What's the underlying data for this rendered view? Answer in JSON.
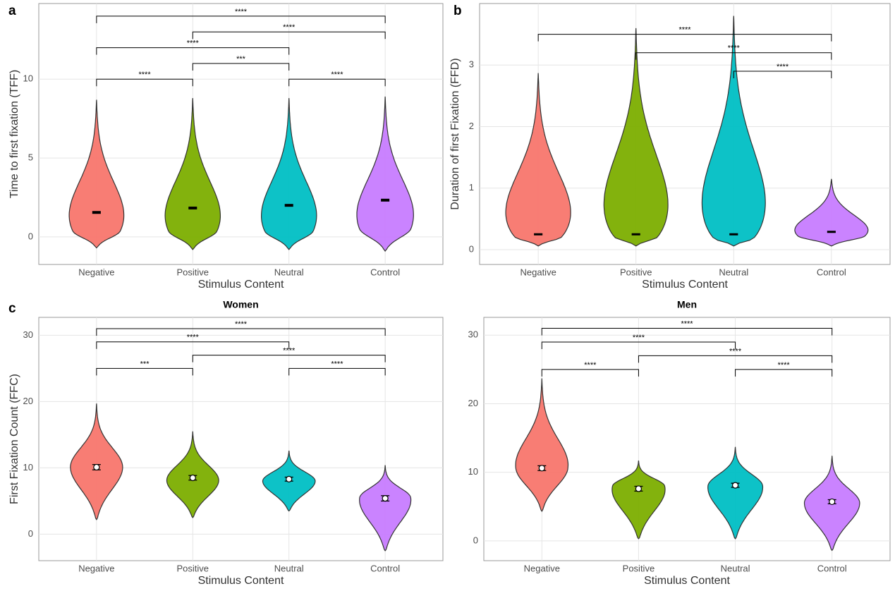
{
  "chart_data": [
    {
      "type": "violin",
      "panel_label": "a",
      "x_label": "Stimulus Content",
      "y_label": "Time to first fixation (TFF)",
      "categories": [
        "Negative",
        "Positive",
        "Neutral",
        "Control"
      ],
      "colors": [
        "#F8766D",
        "#7CAE00",
        "#00BFC4",
        "#C77CFF"
      ],
      "means": [
        1.55,
        1.83,
        2.0,
        2.33
      ],
      "errors": [
        0.06,
        0.06,
        0.06,
        0.06
      ],
      "violin_min": [
        -0.7,
        -0.8,
        -0.8,
        -0.9
      ],
      "violin_max": [
        8.7,
        8.8,
        8.8,
        8.9
      ],
      "violin_peak": [
        0.35,
        0.35,
        0.35,
        0.5
      ],
      "mean_marker": "line",
      "ylim": [
        -1.75,
        14.8
      ],
      "yticks": [
        0,
        5,
        10
      ],
      "grid": true,
      "comparisons": [
        {
          "pair": [
            0,
            1
          ],
          "y": 10.0,
          "label": "****"
        },
        {
          "pair": [
            1,
            2
          ],
          "y": 11.0,
          "label": "***"
        },
        {
          "pair": [
            2,
            3
          ],
          "y": 10.0,
          "label": "****"
        },
        {
          "pair": [
            0,
            2
          ],
          "y": 12.0,
          "label": "****"
        },
        {
          "pair": [
            1,
            3
          ],
          "y": 13.0,
          "label": "****"
        },
        {
          "pair": [
            0,
            3
          ],
          "y": 14.0,
          "label": "****"
        }
      ]
    },
    {
      "type": "violin",
      "panel_label": "b",
      "x_label": "Stimulus Content",
      "y_label": "Duration of first Fixation (FFD)",
      "categories": [
        "Negative",
        "Positive",
        "Neutral",
        "Control"
      ],
      "colors": [
        "#F8766D",
        "#7CAE00",
        "#00BFC4",
        "#C77CFF"
      ],
      "means": [
        0.25,
        0.25,
        0.25,
        0.29
      ],
      "errors": [
        0.01,
        0.01,
        0.01,
        0.01
      ],
      "violin_min": [
        0.06,
        0.06,
        0.06,
        0.06
      ],
      "violin_max": [
        2.87,
        3.6,
        3.8,
        1.15
      ],
      "violin_peak": [
        0.2,
        0.2,
        0.18,
        0.22
      ],
      "mean_marker": "line",
      "ylim": [
        -0.24,
        4.0
      ],
      "yticks": [
        0,
        1,
        2,
        3
      ],
      "grid": true,
      "comparisons": [
        {
          "pair": [
            2,
            3
          ],
          "y": 2.9,
          "label": "****"
        },
        {
          "pair": [
            1,
            3
          ],
          "y": 3.2,
          "label": "****"
        },
        {
          "pair": [
            0,
            3
          ],
          "y": 3.5,
          "label": "****"
        }
      ]
    },
    {
      "type": "violin",
      "panel_label": "c",
      "title": "Women",
      "x_label": "Stimulus Content",
      "y_label": "First Fixation Count (FFC)",
      "categories": [
        "Negative",
        "Positive",
        "Neutral",
        "Control"
      ],
      "colors": [
        "#F8766D",
        "#7CAE00",
        "#00BFC4",
        "#C77CFF"
      ],
      "means": [
        10.1,
        8.5,
        8.3,
        5.4
      ],
      "errors": [
        0.4,
        0.35,
        0.3,
        0.4
      ],
      "violin_min": [
        2.2,
        2.5,
        3.5,
        -2.5
      ],
      "violin_max": [
        19.7,
        15.5,
        12.6,
        10.4
      ],
      "violin_peak": [
        10,
        8,
        8,
        5.5
      ],
      "mean_marker": "circle",
      "ylim": [
        -4.0,
        32.7
      ],
      "yticks": [
        0,
        10,
        20,
        30
      ],
      "grid": true,
      "comparisons": [
        {
          "pair": [
            0,
            1
          ],
          "y": 25,
          "label": "***"
        },
        {
          "pair": [
            2,
            3
          ],
          "y": 25,
          "label": "****"
        },
        {
          "pair": [
            1,
            3
          ],
          "y": 27,
          "label": "****"
        },
        {
          "pair": [
            0,
            2
          ],
          "y": 29,
          "label": "****"
        },
        {
          "pair": [
            0,
            3
          ],
          "y": 31,
          "label": "****"
        }
      ]
    },
    {
      "type": "violin",
      "title": "Men",
      "x_label": "Stimulus Content",
      "categories": [
        "Negative",
        "Positive",
        "Neutral",
        "Control"
      ],
      "colors": [
        "#F8766D",
        "#7CAE00",
        "#00BFC4",
        "#C77CFF"
      ],
      "means": [
        10.6,
        7.6,
        8.1,
        5.7
      ],
      "errors": [
        0.35,
        0.35,
        0.3,
        0.3
      ],
      "violin_min": [
        4.3,
        0.3,
        0.3,
        -1.4
      ],
      "violin_max": [
        23.7,
        11.7,
        13.7,
        12.4
      ],
      "violin_peak": [
        10.5,
        8,
        8,
        5.5
      ],
      "mean_marker": "circle",
      "ylim": [
        -2.9,
        32.6
      ],
      "yticks": [
        0,
        10,
        20,
        30
      ],
      "grid": true,
      "comparisons": [
        {
          "pair": [
            0,
            1
          ],
          "y": 25,
          "label": "****"
        },
        {
          "pair": [
            2,
            3
          ],
          "y": 25,
          "label": "****"
        },
        {
          "pair": [
            1,
            3
          ],
          "y": 27,
          "label": "****"
        },
        {
          "pair": [
            0,
            2
          ],
          "y": 29,
          "label": "****"
        },
        {
          "pair": [
            0,
            3
          ],
          "y": 31,
          "label": "****"
        }
      ]
    }
  ]
}
